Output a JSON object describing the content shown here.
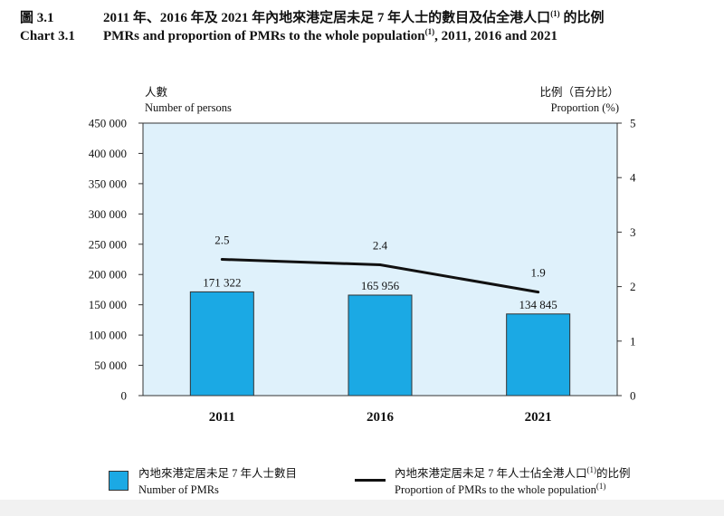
{
  "header": {
    "zh_number": "圖 3.1",
    "zh_title": "2011 年、2016 年及 2021 年內地來港定居未足 7 年人士的數目及佔全港人口",
    "zh_sup": "(1)",
    "zh_title_tail": " 的比例",
    "en_number": "Chart 3.1",
    "en_title": "PMRs and proportion of PMRs to the whole population",
    "en_sup": "(1)",
    "en_title_tail": ", 2011, 2016 and 2021"
  },
  "axes": {
    "left_label_zh": "人數",
    "left_label_en": "Number of persons",
    "right_label_zh": "比例（百分比）",
    "right_label_en": "Proportion (%)"
  },
  "legend": {
    "bar_zh": "內地來港定居未足 7 年人士數目",
    "bar_en": "Number of PMRs",
    "line_zh_a": "內地來港定居未足 7 年人士佔全港人口",
    "line_zh_sup": "(1)",
    "line_zh_b": "的比例",
    "line_en": "Proportion of PMRs to the whole population",
    "line_en_sup": "(1)"
  },
  "chart_data": {
    "type": "bar",
    "categories": [
      "2011",
      "2016",
      "2021"
    ],
    "series": [
      {
        "name": "Number of PMRs",
        "type": "bar",
        "axis": "left",
        "values": [
          171322,
          165956,
          134845
        ],
        "labels": [
          "171 322",
          "165 956",
          "134 845"
        ]
      },
      {
        "name": "Proportion of PMRs to the whole population",
        "type": "line",
        "axis": "right",
        "values": [
          2.5,
          2.4,
          1.9
        ],
        "labels": [
          "2.5",
          "2.4",
          "1.9"
        ]
      }
    ],
    "ylim": [
      0,
      450000
    ],
    "yticks": [
      "0",
      "50 000",
      "100 000",
      "150 000",
      "200 000",
      "250 000",
      "300 000",
      "350 000",
      "400 000",
      "450 000"
    ],
    "y2lim": [
      0,
      5
    ],
    "y2ticks": [
      "0",
      "1",
      "2",
      "3",
      "4",
      "5"
    ],
    "colors": {
      "bar": "#1ba9e4",
      "plot_bg": "#dff1fb",
      "line": "#111111"
    },
    "grid": false
  }
}
